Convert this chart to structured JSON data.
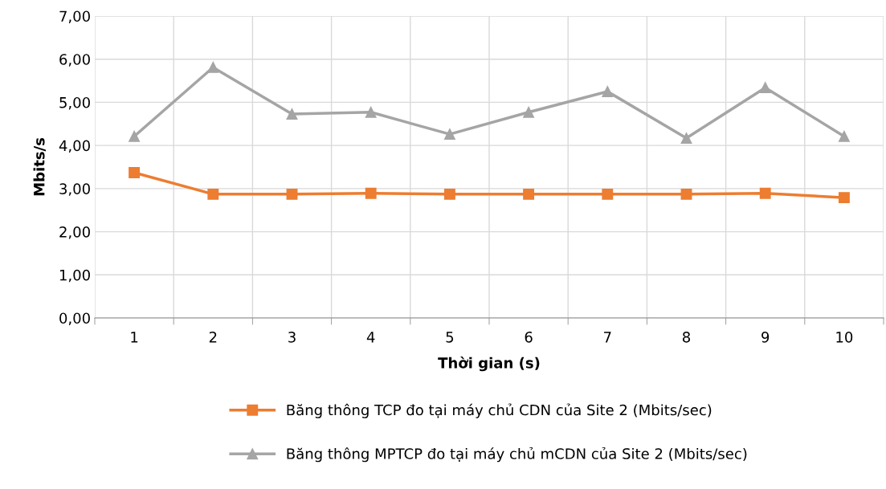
{
  "chart_data": {
    "type": "line",
    "xlabel": "Thời gian (s)",
    "ylabel": "Mbits/s",
    "categories": [
      "1",
      "2",
      "3",
      "4",
      "5",
      "6",
      "7",
      "8",
      "9",
      "10"
    ],
    "series": [
      {
        "name": "Băng thông TCP đo tại máy chủ CDN của Site 2 (Mbits/sec)",
        "color": "#ed7d31",
        "marker": "square",
        "values": [
          3.37,
          2.87,
          2.87,
          2.89,
          2.87,
          2.87,
          2.87,
          2.87,
          2.89,
          2.79
        ]
      },
      {
        "name": "Băng thông MPTCP đo tại máy chủ mCDN của Site 2 (Mbits/sec)",
        "color": "#a5a5a5",
        "marker": "triangle",
        "values": [
          4.21,
          5.81,
          4.73,
          4.77,
          4.26,
          4.77,
          5.25,
          4.17,
          5.34,
          4.21
        ]
      }
    ],
    "ylim": [
      0,
      7
    ],
    "yticks": [
      {
        "value": 0,
        "label": "0,00"
      },
      {
        "value": 1,
        "label": "1,00"
      },
      {
        "value": 2,
        "label": "2,00"
      },
      {
        "value": 3,
        "label": "3,00"
      },
      {
        "value": 4,
        "label": "4,00"
      },
      {
        "value": 5,
        "label": "5,00"
      },
      {
        "value": 6,
        "label": "6,00"
      },
      {
        "value": 7,
        "label": "7,00"
      }
    ],
    "grid": true,
    "legend": "bottom",
    "line_style": "solid"
  }
}
